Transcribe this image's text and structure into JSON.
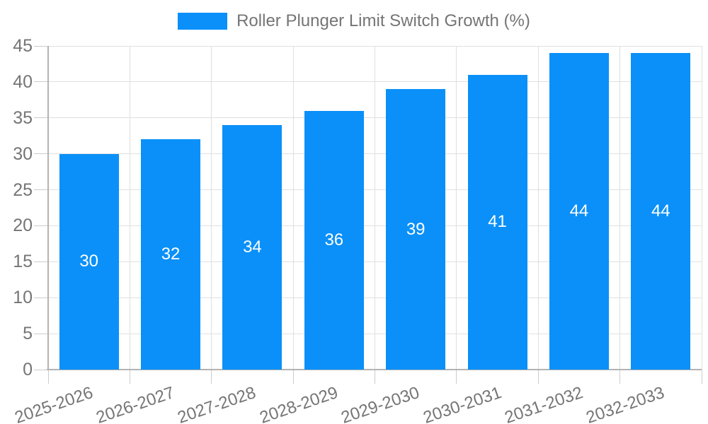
{
  "colors": {
    "bar": "#0a90f8",
    "text": "#757575",
    "grid": "#e0e0e0",
    "axis": "#b3b3b3",
    "tick": "#cccccc",
    "value_label": "#ffffff",
    "background": "#ffffff"
  },
  "chart_data": {
    "type": "bar",
    "title": "Roller Plunger Limit Switch Growth (%)",
    "categories": [
      "2025-2026",
      "2026-2027",
      "2027-2028",
      "2028-2029",
      "2029-2030",
      "2030-2031",
      "2031-2032",
      "2032-2033"
    ],
    "values": [
      30,
      32,
      34,
      36,
      39,
      41,
      44,
      44
    ],
    "xlabel": "",
    "ylabel": "",
    "ylim": [
      0,
      45
    ],
    "yticks": [
      0,
      5,
      10,
      15,
      20,
      25,
      30,
      35,
      40,
      45
    ],
    "grid": true,
    "legend_position": "top",
    "value_label_position": "inside-center",
    "x_label_rotation_deg": -19
  }
}
